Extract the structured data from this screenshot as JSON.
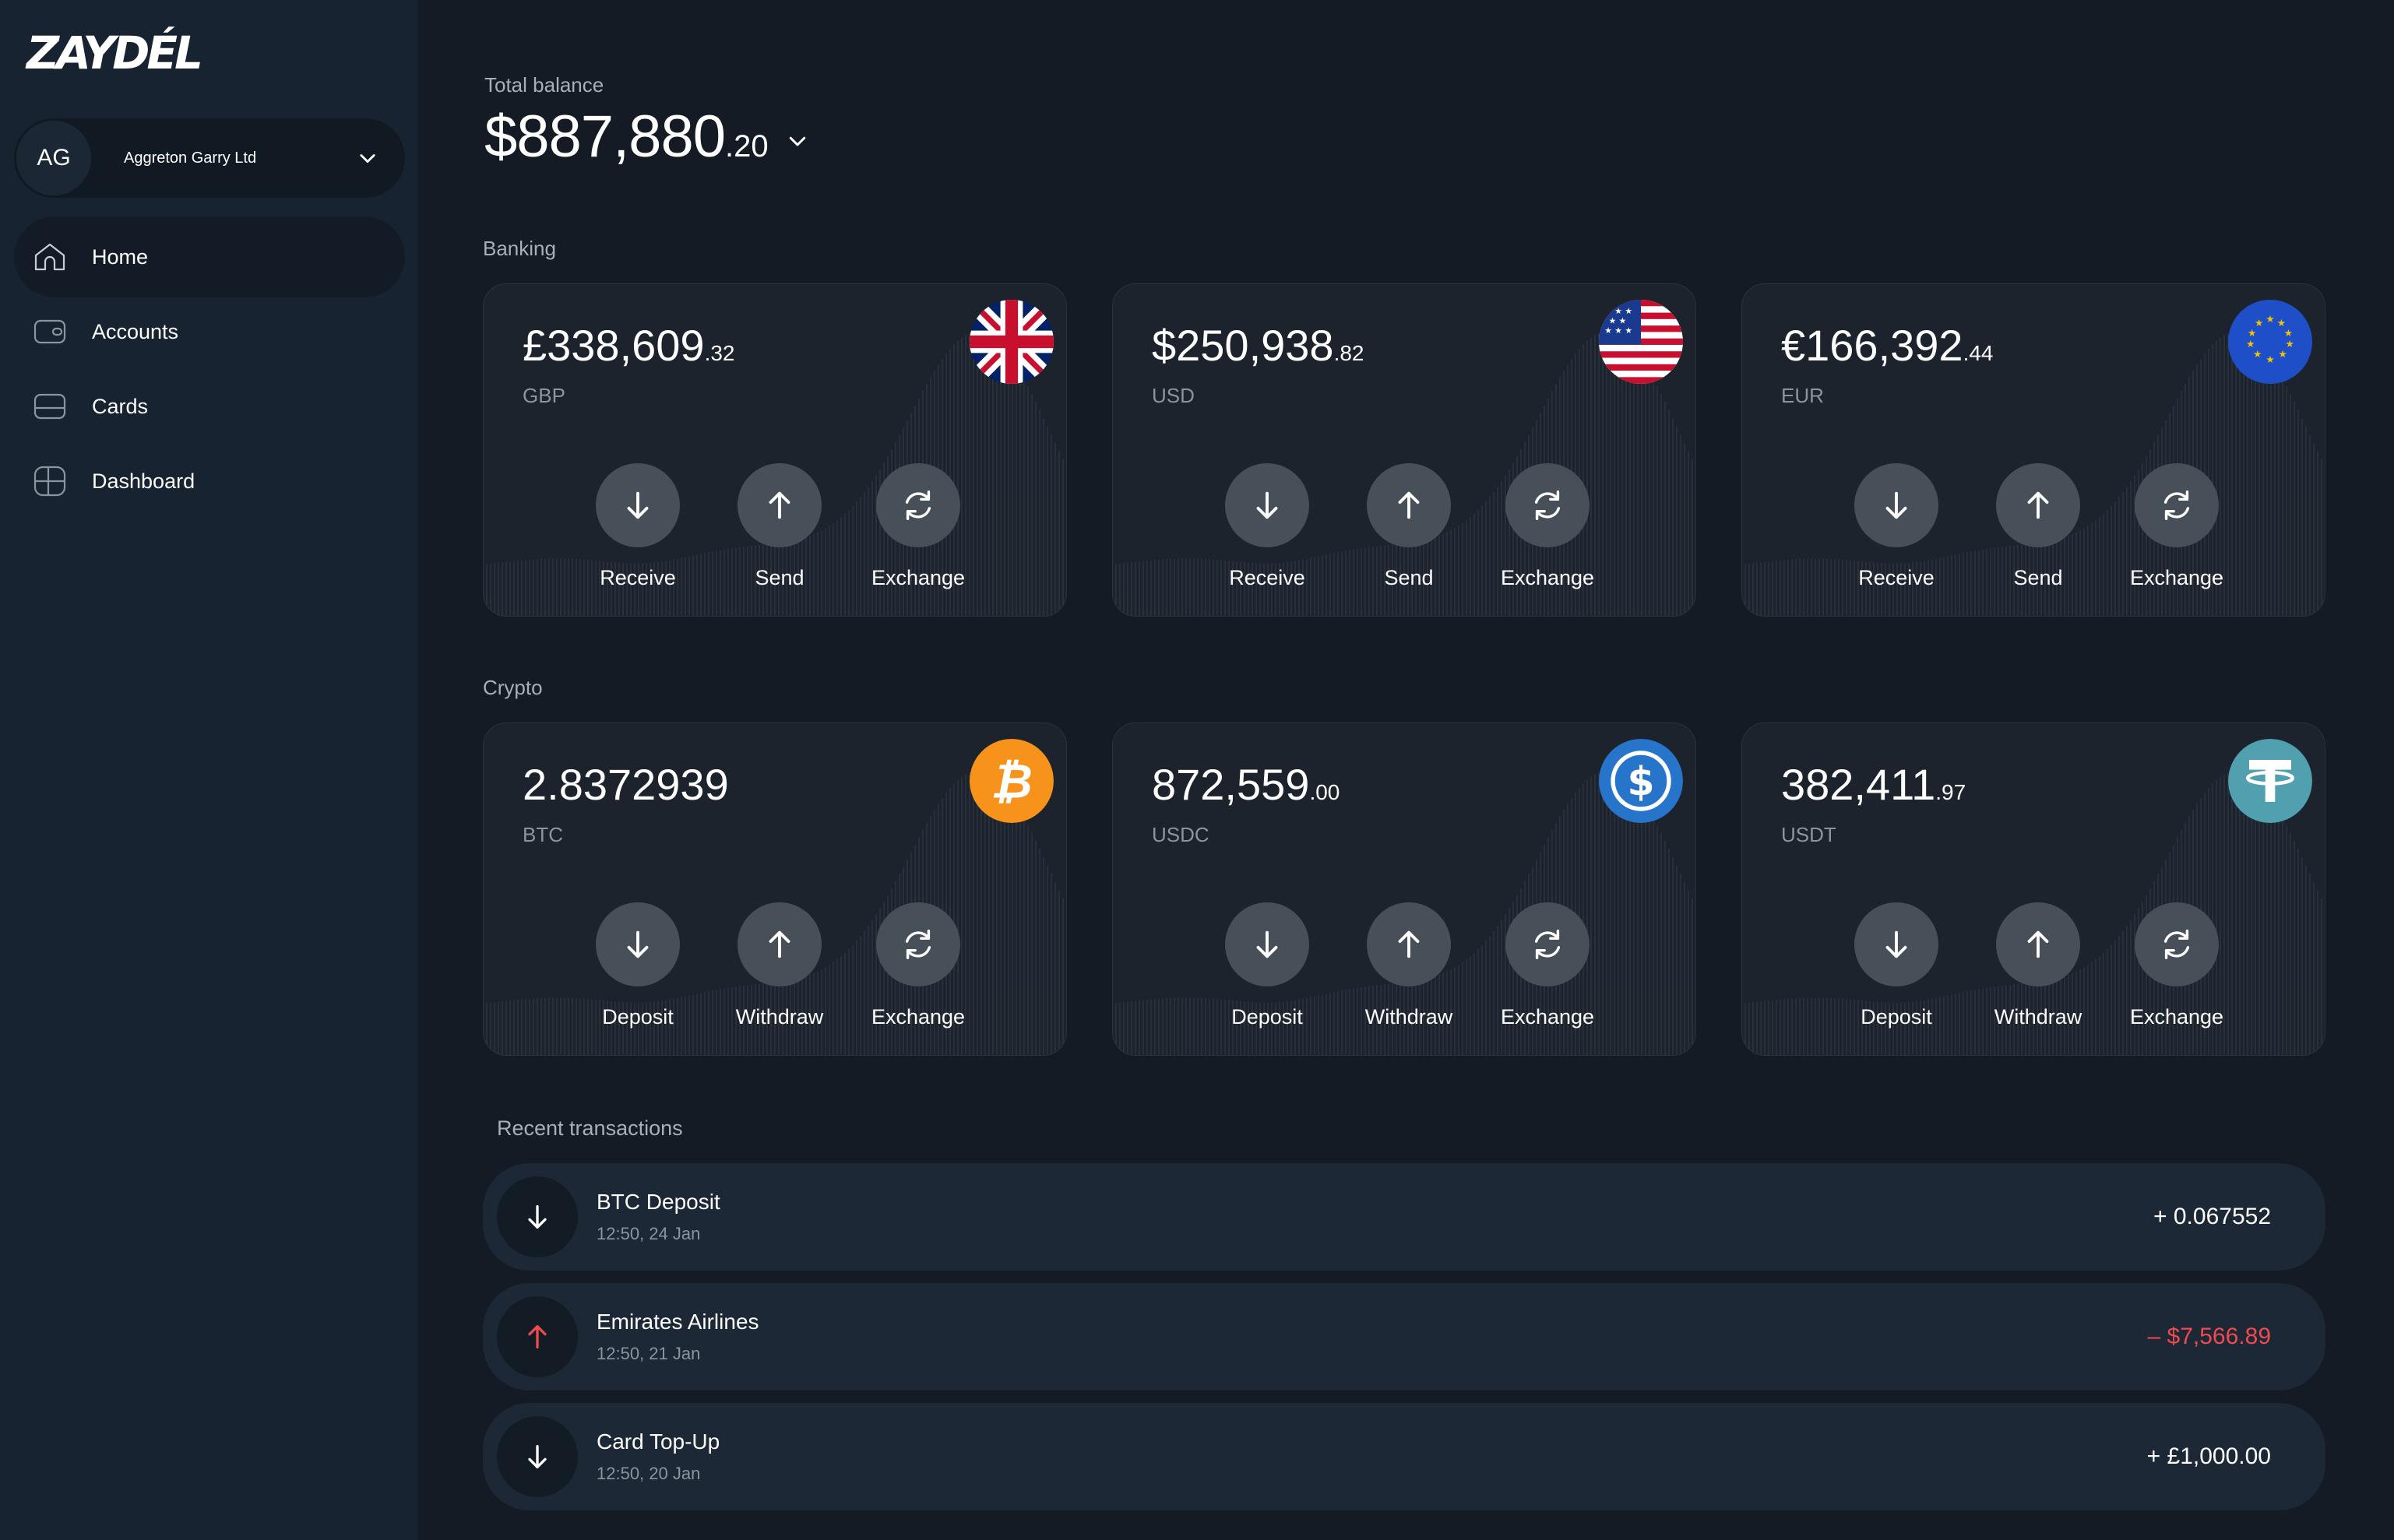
{
  "app": {
    "logo": "ZAYDÉL"
  },
  "account": {
    "initials": "AG",
    "name": "Aggreton Garry Ltd"
  },
  "nav": [
    {
      "label": "Home",
      "icon": "home-icon",
      "active": true
    },
    {
      "label": "Accounts",
      "icon": "wallet-icon",
      "active": false
    },
    {
      "label": "Cards",
      "icon": "card-icon",
      "active": false
    },
    {
      "label": "Dashboard",
      "icon": "dashboard-icon",
      "active": false
    }
  ],
  "total": {
    "label": "Total balance",
    "major": "$887,880",
    "minor": ".20"
  },
  "banking": {
    "label": "Banking",
    "cards": [
      {
        "major": "£338,609",
        "minor": ".32",
        "currency": "GBP",
        "flag": "uk-flag-icon",
        "actions": [
          "Receive",
          "Send",
          "Exchange"
        ]
      },
      {
        "major": "$250,938",
        "minor": ".82",
        "currency": "USD",
        "flag": "us-flag-icon",
        "actions": [
          "Receive",
          "Send",
          "Exchange"
        ]
      },
      {
        "major": "€166,392",
        "minor": ".44",
        "currency": "EUR",
        "flag": "eu-flag-icon",
        "actions": [
          "Receive",
          "Send",
          "Exchange"
        ]
      }
    ]
  },
  "crypto": {
    "label": "Crypto",
    "cards": [
      {
        "major": "2.8372939",
        "minor": "",
        "currency": "BTC",
        "flag": "bitcoin-icon",
        "actions": [
          "Deposit",
          "Withdraw",
          "Exchange"
        ]
      },
      {
        "major": "872,559",
        "minor": ".00",
        "currency": "USDC",
        "flag": "usdc-icon",
        "actions": [
          "Deposit",
          "Withdraw",
          "Exchange"
        ]
      },
      {
        "major": "382,411",
        "minor": ".97",
        "currency": "USDT",
        "flag": "tether-icon",
        "actions": [
          "Deposit",
          "Withdraw",
          "Exchange"
        ]
      }
    ]
  },
  "transactions": {
    "label": "Recent transactions",
    "items": [
      {
        "title": "BTC Deposit",
        "time": "12:50, 24 Jan",
        "amount": "+ 0.067552",
        "direction": "in"
      },
      {
        "title": "Emirates Airlines",
        "time": "12:50, 21 Jan",
        "amount": "– $7,566.89",
        "direction": "out"
      },
      {
        "title": "Card Top-Up",
        "time": "12:50, 20 Jan",
        "amount": "+ £1,000.00",
        "direction": "in"
      }
    ]
  },
  "colors": {
    "bg": "#151b24",
    "sidebar": "#172330",
    "card": "#1c232d",
    "action": "#474f59",
    "negative": "#ee4a50",
    "bitcoin": "#f7931a",
    "usdc": "#2775ca",
    "tether": "#50a0b0",
    "eu_blue": "#1f4fc8"
  }
}
